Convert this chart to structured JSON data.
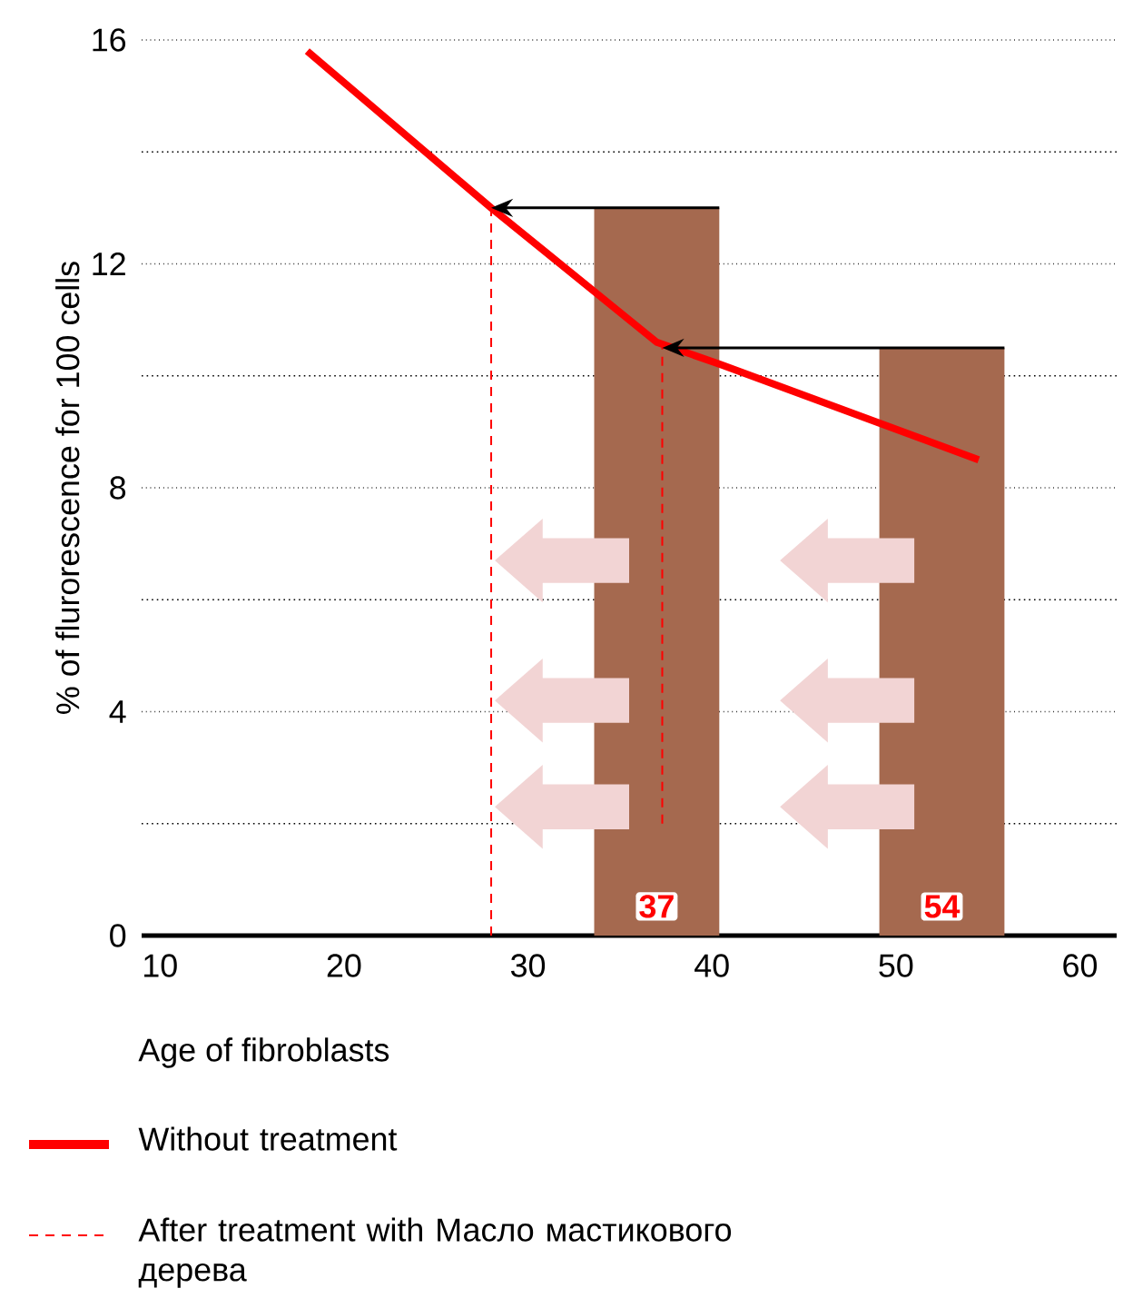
{
  "chart_data": {
    "type": "line",
    "xlabel": "Age of fibroblasts",
    "ylabel": "% of flurorescence for 100 cells",
    "xlim": [
      9,
      62
    ],
    "xticks": [
      10,
      20,
      30,
      40,
      50,
      60
    ],
    "ylim": [
      0,
      16
    ],
    "yticks": [
      0,
      4,
      8,
      12,
      16
    ],
    "grid": "y",
    "legend": "bottom",
    "series": [
      {
        "type": "bar",
        "color": "#a5694f",
        "x": [
          37,
          52.5
        ],
        "values": [
          13,
          10.5
        ]
      },
      {
        "name": "Without treatment",
        "color": "#ff0000",
        "line_style": "solid",
        "x": [
          18,
          28,
          37,
          40.5,
          54.5
        ],
        "values": [
          15.8,
          13,
          10.6,
          10.2,
          8.5
        ]
      },
      {
        "name": "After treatment with Масло мастикового дерева",
        "color": "#ff0000",
        "line_style": "dashed",
        "x": [
          28,
          28,
          null,
          37.3,
          37.3
        ],
        "values": [
          0,
          13,
          null,
          2,
          10.6
        ]
      }
    ],
    "annotations": [
      "37",
      "54"
    ]
  }
}
